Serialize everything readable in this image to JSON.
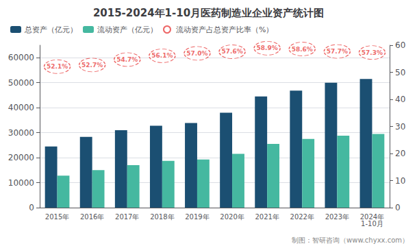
{
  "chart_data": {
    "type": "bar",
    "title": "2015-2024年1-10月医药制造业企业资产统计图",
    "categories": [
      "2015年",
      "2016年",
      "2017年",
      "2018年",
      "2019年",
      "2020年",
      "2021年",
      "2022年",
      "2023年",
      "2024年\n1-10月"
    ],
    "series": [
      {
        "name": "总资产（亿元）",
        "color": "#1b4f72",
        "values": [
          24500,
          28300,
          31000,
          32800,
          33900,
          38000,
          44500,
          46800,
          50000,
          51500
        ]
      },
      {
        "name": "流动资产（亿元）",
        "color": "#45b8a0",
        "values": [
          12800,
          15000,
          17000,
          18700,
          19300,
          21500,
          25500,
          27500,
          28800,
          29500
        ]
      },
      {
        "name": "流动资产占总资产比率（%）",
        "type": "scatter",
        "axis": "y2",
        "marker": "circle",
        "color": "#e84040",
        "data_labels": true,
        "values": [
          52.1,
          52.7,
          54.7,
          56.1,
          57.0,
          57.6,
          58.9,
          58.6,
          57.7,
          57.3
        ],
        "value_labels": [
          "52.1%",
          "52.7%",
          "54.7%",
          "56.1%",
          "57.0%",
          "57.6%",
          "58.9%",
          "58.6%",
          "57.7%",
          "57.3%"
        ]
      }
    ],
    "ylim": [
      0,
      65000
    ],
    "yticks": [
      0,
      10000,
      20000,
      30000,
      40000,
      50000,
      60000
    ],
    "y2lim": [
      0,
      60
    ],
    "y2ticks": [
      0,
      10,
      20,
      30,
      40,
      50,
      60
    ],
    "grid": true,
    "legend": "upper left",
    "annotations": [
      "制图：智研咨询（www.chyxx.com）"
    ]
  }
}
